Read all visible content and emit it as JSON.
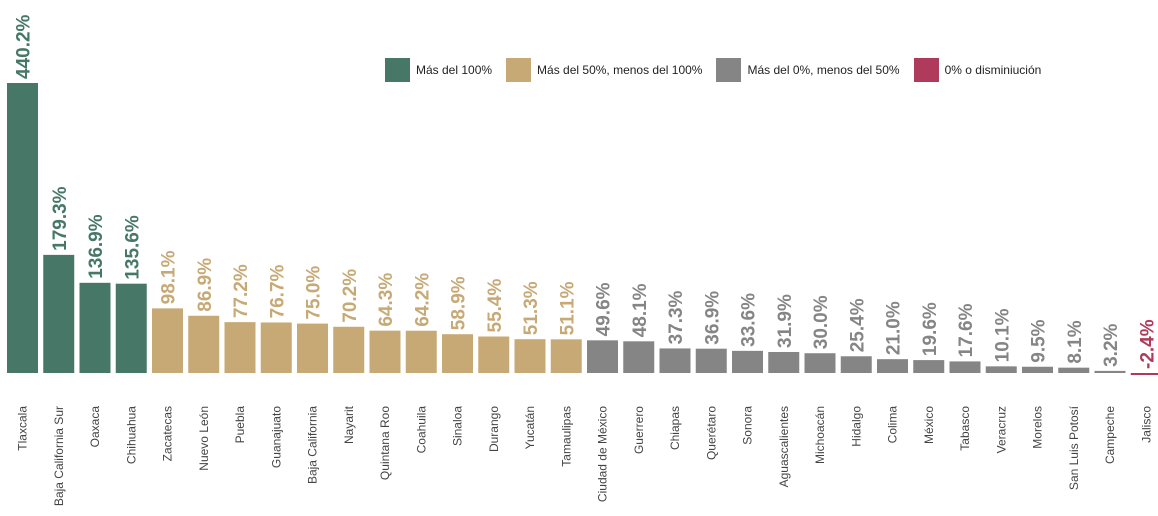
{
  "legend": [
    {
      "label": "Más del 100%",
      "color": "#477867"
    },
    {
      "label": "Más del 50%, menos del 100%",
      "color": "#c7a976"
    },
    {
      "label": "Más del 0%, menos del 50%",
      "color": "#858585"
    },
    {
      "label": "0% o disminiución",
      "color": "#b03a5b"
    }
  ],
  "chart_data": {
    "type": "bar",
    "title": "",
    "xlabel": "",
    "ylabel": "",
    "categories": [
      "Tlaxcala",
      "Baja California Sur",
      "Oaxaca",
      "Chihuahua",
      "Zacatecas",
      "Nuevo León",
      "Puebla",
      "Guanajuato",
      "Baja California",
      "Nayarit",
      "Quintana Roo",
      "Coahuila",
      "Sinaloa",
      "Durango",
      "Yucatán",
      "Tamaulipas",
      "Ciudad de México",
      "Guerrero",
      "Chiapas",
      "Querétaro",
      "Sonora",
      "Aguascalientes",
      "Michoacán",
      "Hidalgo",
      "Colima",
      "México",
      "Tabasco",
      "Veracruz",
      "Morelos",
      "San Luis Potosí",
      "Campeche",
      "Jalisco"
    ],
    "values": [
      440.2,
      179.3,
      136.9,
      135.6,
      98.1,
      86.9,
      77.2,
      76.7,
      75.0,
      70.2,
      64.3,
      64.2,
      58.9,
      55.4,
      51.3,
      51.1,
      49.6,
      48.1,
      37.3,
      36.9,
      33.6,
      31.9,
      30.0,
      25.4,
      21.0,
      19.6,
      17.6,
      10.1,
      9.5,
      8.1,
      3.2,
      -2.4
    ],
    "value_labels": [
      "440.2%",
      "179.3%",
      "136.9%",
      "135.6%",
      "98.1%",
      "86.9%",
      "77.2%",
      "76.7%",
      "75.0%",
      "70.2%",
      "64.3%",
      "64.2%",
      "58.9%",
      "55.4%",
      "51.3%",
      "51.1%",
      "49.6%",
      "48.1%",
      "37.3%",
      "36.9%",
      "33.6%",
      "31.9%",
      "30.0%",
      "25.4%",
      "21.0%",
      "19.6%",
      "17.6%",
      "10.1%",
      "9.5%",
      "8.1%",
      "3.2%",
      "-2.4%"
    ],
    "thresholds": {
      "high": 100,
      "mid": 50,
      "low": 0
    },
    "grid": false,
    "legend_position": "top-right"
  }
}
